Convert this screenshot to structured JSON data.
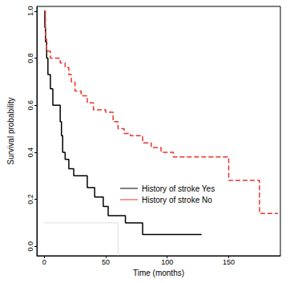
{
  "chart_data": {
    "type": "line",
    "x_label": "Time (months)",
    "y_label": "Survival probability",
    "xlim": [
      -6,
      192
    ],
    "ylim": [
      -0.04,
      1.02
    ],
    "xticks": [
      0,
      50,
      100,
      150
    ],
    "yticks": [
      {
        "value": 0,
        "label": "0.0"
      },
      0.2,
      0.4,
      0.6,
      0.8,
      {
        "value": 1,
        "label": "1.0"
      }
    ],
    "grid": false,
    "legend": "lower right",
    "series": [
      {
        "name": "History of stroke Yes",
        "color": "#000000",
        "line_style": "solid",
        "x": [
          0,
          0.5,
          1,
          2,
          3,
          5,
          7,
          13,
          14,
          15,
          17,
          20,
          24,
          35,
          41,
          48,
          52,
          66,
          80,
          128
        ],
        "values": [
          1.0,
          0.93,
          0.87,
          0.8,
          0.73,
          0.67,
          0.6,
          0.53,
          0.47,
          0.4,
          0.37,
          0.33,
          0.3,
          0.25,
          0.21,
          0.17,
          0.13,
          0.1,
          0.05,
          0.05
        ]
      },
      {
        "name": "History of stroke No",
        "color": "#e8332d",
        "line_style": "dashed",
        "x": [
          0,
          1,
          2,
          5,
          13,
          17,
          20,
          22,
          25,
          30,
          35,
          40,
          50,
          56,
          60,
          65,
          70,
          80,
          87,
          95,
          105,
          150,
          175,
          190
        ],
        "values": [
          1.0,
          0.88,
          0.83,
          0.8,
          0.78,
          0.76,
          0.73,
          0.7,
          0.66,
          0.64,
          0.61,
          0.58,
          0.57,
          0.53,
          0.5,
          0.48,
          0.47,
          0.44,
          0.42,
          0.4,
          0.38,
          0.28,
          0.14,
          0.14
        ]
      }
    ],
    "guide_lines": [
      {
        "x": [
          0,
          60
        ],
        "y": [
          0.1,
          0.1
        ]
      },
      {
        "x": [
          60,
          60
        ],
        "y": [
          -0.04,
          0.1
        ]
      }
    ]
  }
}
